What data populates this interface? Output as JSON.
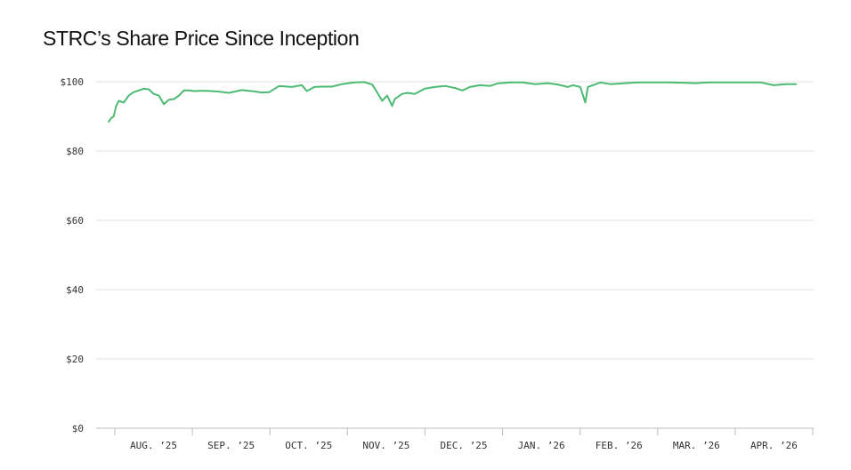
{
  "chart_data": {
    "type": "line",
    "title": "STRC’s Share Price Since Inception",
    "xlabel": "",
    "ylabel": "",
    "ylim": [
      0,
      100
    ],
    "y_ticks": [
      0,
      20,
      40,
      60,
      80,
      100
    ],
    "y_tick_labels": [
      "$0",
      "$20",
      "$40",
      "$60",
      "$80",
      "$100"
    ],
    "x_categories": [
      "AUG. ’25",
      "SEP. ’25",
      "OCT. ’25",
      "NOV. ’25",
      "DEC. ’25",
      "JAN. ’26",
      "FEB. ’26",
      "MAR. ’26",
      "APR. ’26"
    ],
    "grid": true,
    "legend": "none",
    "line_color": "#4cba73",
    "series": [
      {
        "x": [
          "2025-07-29",
          "2025-07-30",
          "2025-07-31",
          "2025-08-01",
          "2025-08-02",
          "2025-08-04",
          "2025-08-06",
          "2025-08-08",
          "2025-08-10",
          "2025-08-12",
          "2025-08-14",
          "2025-08-16",
          "2025-08-18",
          "2025-08-20",
          "2025-08-22",
          "2025-08-24",
          "2025-08-26",
          "2025-08-28",
          "2025-08-30",
          "2025-09-01",
          "2025-09-05",
          "2025-09-10",
          "2025-09-15",
          "2025-09-20",
          "2025-09-25",
          "2025-09-28",
          "2025-10-01",
          "2025-10-05",
          "2025-10-10",
          "2025-10-14",
          "2025-10-16",
          "2025-10-19",
          "2025-10-22",
          "2025-10-26",
          "2025-10-30",
          "2025-11-01",
          "2025-11-04",
          "2025-11-08",
          "2025-11-11",
          "2025-11-13",
          "2025-11-15",
          "2025-11-17",
          "2025-11-19",
          "2025-11-20",
          "2025-11-21",
          "2025-11-23",
          "2025-11-25",
          "2025-11-28",
          "2025-12-02",
          "2025-12-06",
          "2025-12-10",
          "2025-12-14",
          "2025-12-17",
          "2025-12-20",
          "2025-12-24",
          "2025-12-28",
          "2025-12-31",
          "2026-01-05",
          "2026-01-10",
          "2026-01-15",
          "2026-01-20",
          "2026-01-24",
          "2026-01-28",
          "2026-01-30",
          "2026-02-02",
          "2026-02-04",
          "2026-02-05",
          "2026-02-07",
          "2026-02-10",
          "2026-02-14",
          "2026-02-20",
          "2026-02-25",
          "2026-03-01",
          "2026-03-10",
          "2026-03-20",
          "2026-03-25",
          "2026-04-01",
          "2026-04-10",
          "2026-04-15",
          "2026-04-20",
          "2026-04-25",
          "2026-04-29"
        ],
        "values": [
          88.5,
          89.5,
          90.0,
          93.0,
          94.5,
          94.0,
          96.0,
          97.0,
          97.5,
          98.0,
          97.8,
          96.5,
          96.0,
          93.5,
          94.8,
          95.0,
          96.0,
          97.5,
          97.5,
          97.3,
          97.4,
          97.2,
          96.8,
          97.6,
          97.2,
          96.9,
          97.0,
          98.8,
          98.5,
          99.0,
          97.3,
          98.5,
          98.6,
          98.6,
          99.3,
          99.5,
          99.8,
          99.9,
          99.2,
          97.0,
          94.5,
          96.0,
          93.0,
          95.0,
          95.5,
          96.5,
          96.8,
          96.5,
          98.0,
          98.5,
          98.8,
          98.2,
          97.5,
          98.5,
          99.0,
          98.8,
          99.5,
          99.8,
          99.8,
          99.3,
          99.6,
          99.2,
          98.5,
          99.0,
          98.5,
          94.0,
          98.5,
          99.0,
          99.8,
          99.3,
          99.6,
          99.8,
          99.8,
          99.8,
          99.6,
          99.8,
          99.8,
          99.8,
          99.8,
          99.0,
          99.3,
          99.3
        ]
      }
    ]
  }
}
